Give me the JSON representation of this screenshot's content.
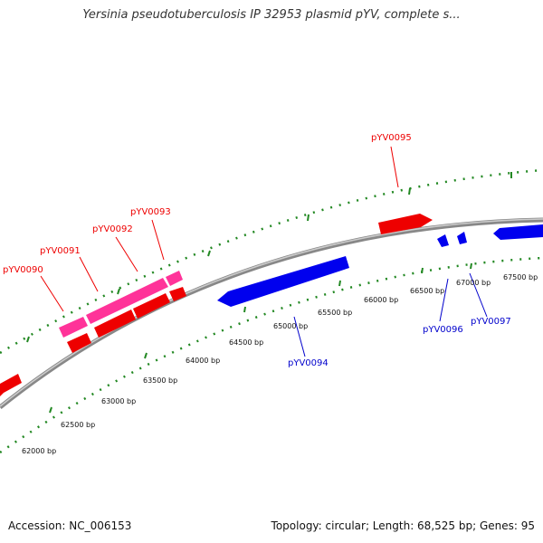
{
  "title": "Yersinia pseudotuberculosis IP 32953 plasmid pYV, complete s...",
  "footer": {
    "accession": "Accession: NC_006153",
    "summary": "Topology: circular; Length: 68,525 bp; Genes: 95"
  },
  "colors": {
    "forward": "#ff0000",
    "reverse": "#0000ff",
    "highlight": "#ff3399",
    "ticks": "#228822",
    "backbone": "#999999"
  },
  "position_labels": [
    "62000 bp",
    "62500 bp",
    "63000 bp",
    "63500 bp",
    "64000 bp",
    "64500 bp",
    "65000 bp",
    "65500 bp",
    "66000 bp",
    "66500 bp",
    "67000 bp",
    "67500 bp"
  ],
  "genes": [
    {
      "label": "pYV0090",
      "strand": "forward"
    },
    {
      "label": "pYV0091",
      "strand": "forward"
    },
    {
      "label": "pYV0092",
      "strand": "forward"
    },
    {
      "label": "pYV0093",
      "strand": "forward"
    },
    {
      "label": "pYV0094",
      "strand": "reverse"
    },
    {
      "label": "pYV0095",
      "strand": "forward"
    },
    {
      "label": "pYV0096",
      "strand": "reverse"
    },
    {
      "label": "pYV0097",
      "strand": "reverse"
    }
  ]
}
